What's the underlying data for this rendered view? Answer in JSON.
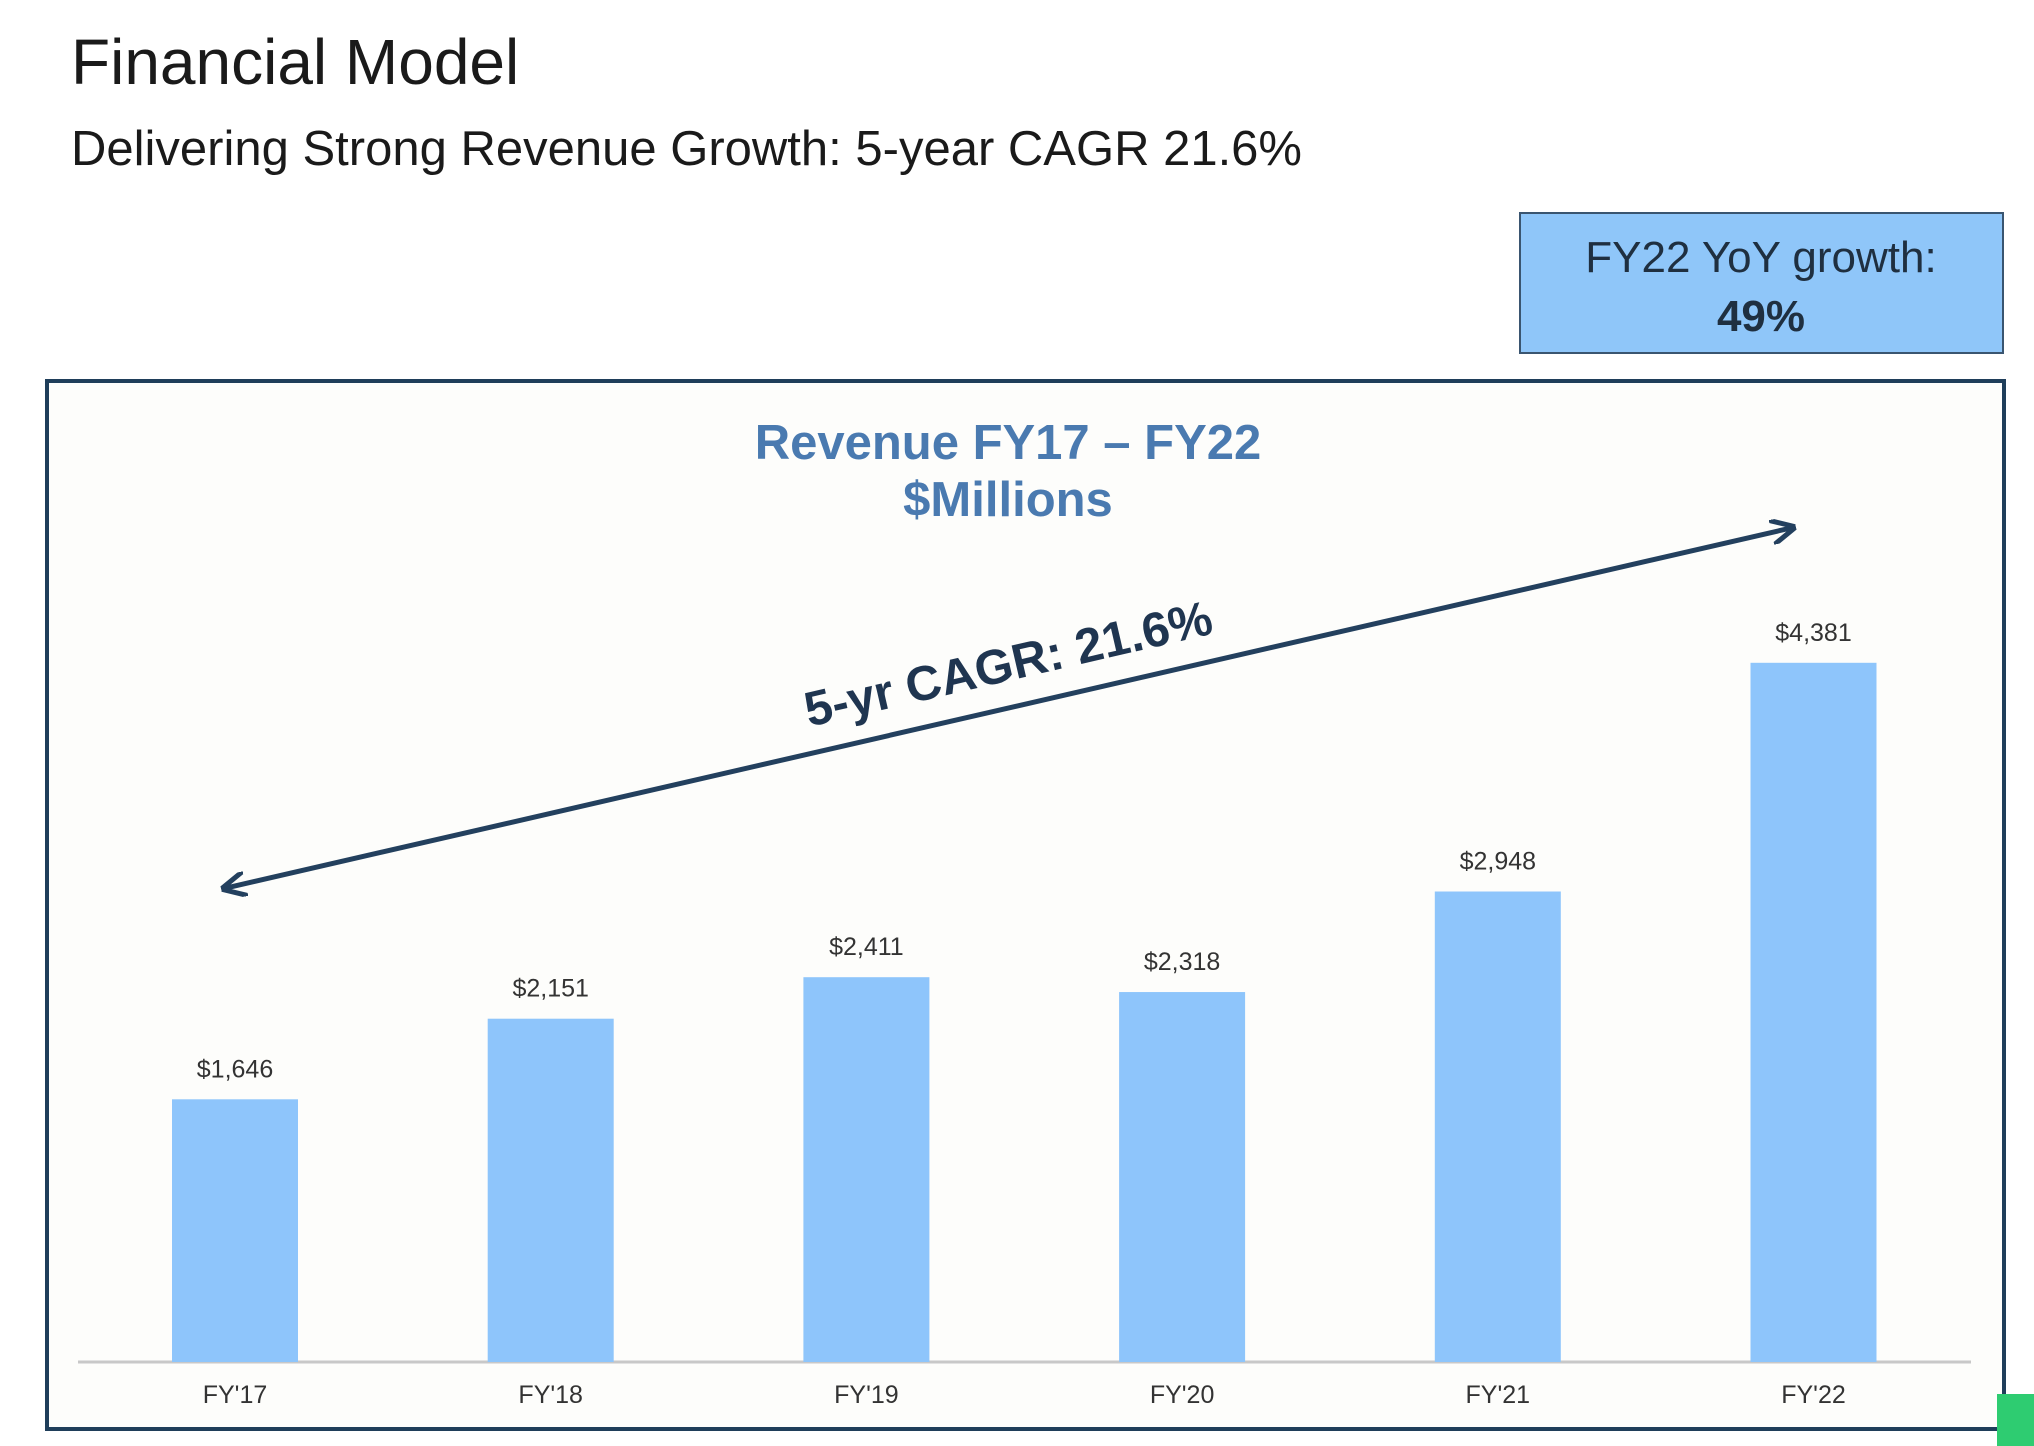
{
  "title": "Financial Model",
  "subtitle": "Delivering Strong Revenue Growth: 5-year CAGR 21.6%",
  "callout": {
    "label": "FY22 YoY growth:",
    "value": "49%"
  },
  "chart_data": {
    "type": "bar",
    "title": "Revenue FY17 – FY22",
    "subtitle": "$Millions",
    "annotation": "5-yr CAGR: 21.6%",
    "categories": [
      "FY'17",
      "FY'18",
      "FY'19",
      "FY'20",
      "FY'21",
      "FY'22"
    ],
    "values": [
      1646,
      2151,
      2411,
      2318,
      2948,
      4381
    ],
    "value_labels": [
      "$1,646",
      "$2,151",
      "$2,411",
      "$2,318",
      "$2,948",
      "$4,381"
    ],
    "color": "#8ec5fb"
  }
}
